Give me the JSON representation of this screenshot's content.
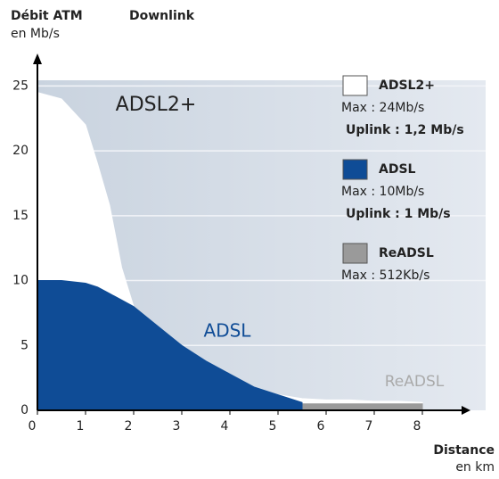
{
  "chart_data": {
    "type": "area",
    "title": "Débit ATM",
    "subtitle": "Downlink",
    "y_label": "en Mb/s",
    "x_label": "Distance",
    "x_unit": "en km",
    "x": [
      0,
      0.5,
      1,
      1.25,
      1.5,
      1.75,
      2,
      2.5,
      3,
      3.5,
      4,
      4.5,
      5,
      5.5,
      6,
      6.5,
      7,
      7.5,
      8
    ],
    "series": [
      {
        "name": "ADSL2+",
        "color": "#ffffff",
        "label_color": "#222222",
        "details": [
          "Max : 24Mb/s",
          "Uplink : 1,2 Mb/s"
        ],
        "values": [
          24.5,
          24,
          22,
          19,
          15.8,
          11,
          8,
          6.5,
          5,
          3.8,
          2.8,
          1.8,
          1.2,
          0.9,
          0.8,
          0.8,
          0.7,
          0.7,
          0.6
        ]
      },
      {
        "name": "ReADSL",
        "color": "#9a9a9a",
        "label_color": "#aaaaaa",
        "details": [
          "Max : 512Kb/s"
        ],
        "values": [
          0.5,
          0.5,
          0.5,
          0.5,
          0.5,
          0.5,
          0.5,
          0.5,
          0.5,
          0.5,
          0.5,
          0.5,
          0.5,
          0.5,
          0.5,
          0.5,
          0.5,
          0.5,
          0.5
        ]
      },
      {
        "name": "ADSL",
        "color": "#0f4c96",
        "label_color": "#0f4c96",
        "details": [
          "Max : 10Mb/s",
          "Uplink : 1 Mb/s"
        ],
        "values": [
          10,
          10,
          9.8,
          9.5,
          9,
          8.5,
          8,
          6.5,
          5,
          3.8,
          2.8,
          1.8,
          1.2,
          0.6,
          null,
          null,
          null,
          null,
          null
        ]
      }
    ],
    "xlim": [
      0,
      9
    ],
    "xticks": [
      0,
      1,
      2,
      3,
      4,
      5,
      6,
      7,
      8
    ],
    "ylim": [
      0,
      27.5
    ],
    "yticks": [
      0,
      5,
      10,
      15,
      20,
      25
    ],
    "grid": true
  }
}
